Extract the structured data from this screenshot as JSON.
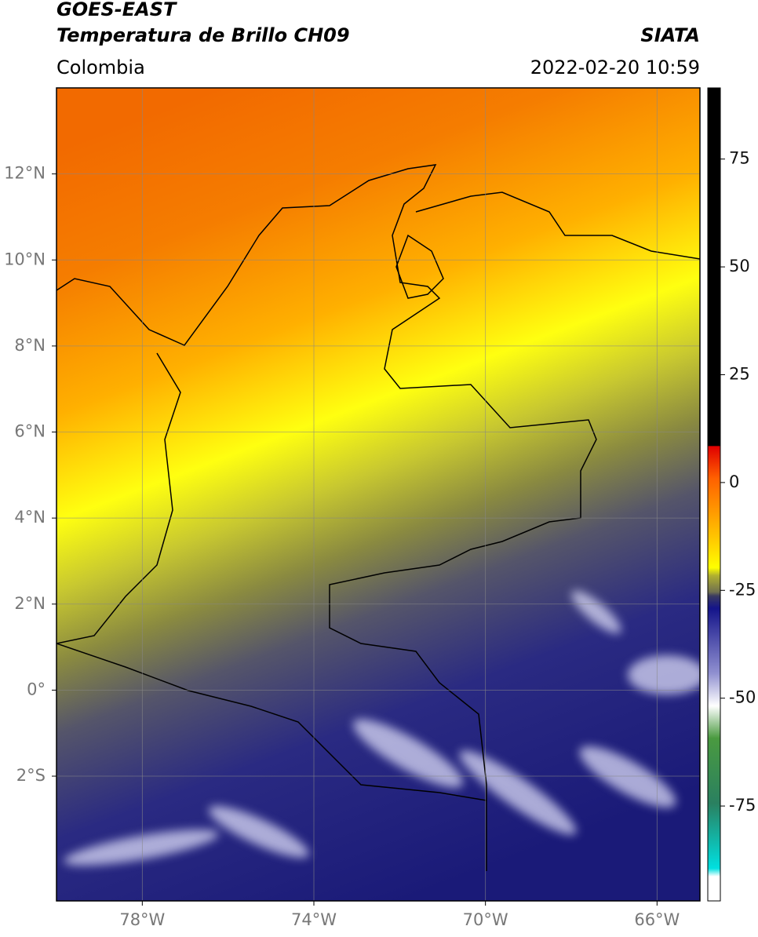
{
  "header": {
    "satellite": "GOES-EAST",
    "product": "Temperatura de Brillo CH09",
    "region": "Colombia",
    "source": "SIATA",
    "datetime": "2022-02-20 10:59"
  },
  "map": {
    "xlim": [
      -80,
      -65
    ],
    "ylim": [
      -4.9,
      14
    ],
    "xticks": [
      {
        "value": -78,
        "label": "78°W"
      },
      {
        "value": -74,
        "label": "74°W"
      },
      {
        "value": -70,
        "label": "70°W"
      },
      {
        "value": -66,
        "label": "66°W"
      }
    ],
    "yticks": [
      {
        "value": 12,
        "label": "12°N"
      },
      {
        "value": 10,
        "label": "10°N"
      },
      {
        "value": 8,
        "label": "8°N"
      },
      {
        "value": 6,
        "label": "6°N"
      },
      {
        "value": 4,
        "label": "4°N"
      },
      {
        "value": 2,
        "label": "2°N"
      },
      {
        "value": 0,
        "label": "0°"
      },
      {
        "value": -2,
        "label": "2°S"
      }
    ],
    "grid": true
  },
  "colorbar": {
    "range": [
      -97,
      91.5
    ],
    "ticks": [
      75,
      50,
      25,
      0,
      -25,
      -50,
      -75
    ]
  }
}
